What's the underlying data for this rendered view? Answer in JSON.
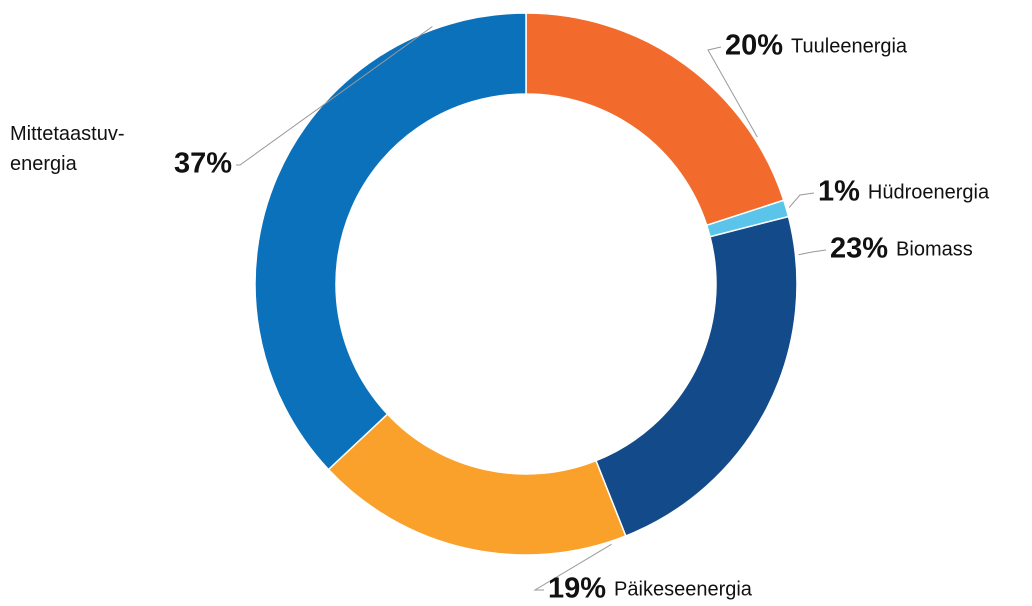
{
  "chart_data": {
    "type": "donut",
    "categories": [
      "Tuuleenergia",
      "Hüdroenergia",
      "Biomass",
      "Päikeseenergia",
      "Mittetaastuv-\nenergia"
    ],
    "values": [
      20,
      1,
      23,
      19,
      37
    ],
    "value_labels": [
      "20%",
      "1%",
      "23%",
      "19%",
      "37%"
    ],
    "colors": [
      "#f26b2c",
      "#5bc4ea",
      "#134a8a",
      "#f9a12b",
      "#0b71bb"
    ]
  }
}
